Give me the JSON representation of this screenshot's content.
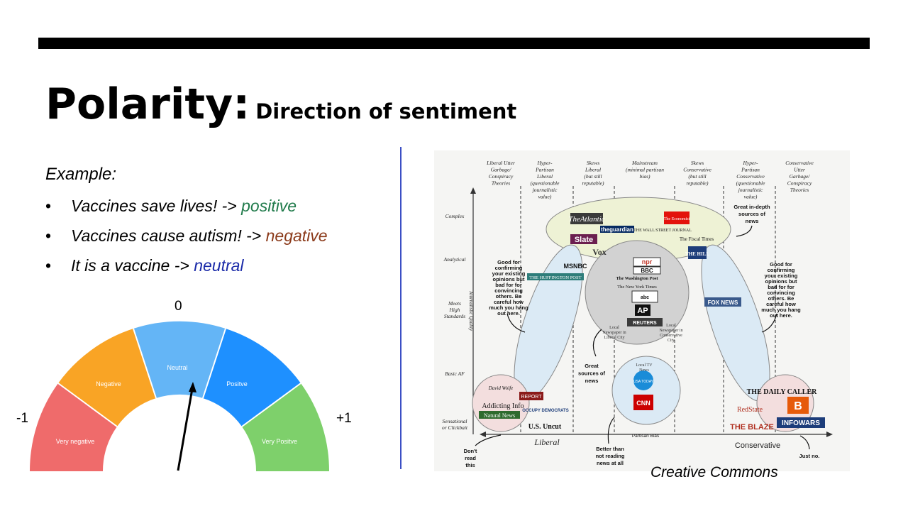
{
  "slide": {
    "title": "Polarity:",
    "subtitle": "Direction of sentiment"
  },
  "example": {
    "heading": "Example:",
    "bullet_glyph": "•",
    "items": [
      {
        "text": "Vaccines save lives! -> ",
        "label": "positive",
        "label_color": "#1f7a4a"
      },
      {
        "text": "Vaccines cause autism! -> ",
        "label": "negative",
        "label_color": "#8b3a1a"
      },
      {
        "text": "It is a vaccine -> ",
        "label": "neutral",
        "label_color": "#1a2aa8"
      }
    ]
  },
  "gauge": {
    "label_zero": "0",
    "label_min": "-1",
    "label_max": "+1",
    "segments": [
      {
        "label": "Very negative",
        "color": "#ef6b6b"
      },
      {
        "label": "Negative",
        "color": "#f9a425"
      },
      {
        "label": "Neutral",
        "color": "#64b5f6"
      },
      {
        "label": "Positve",
        "color": "#1e90ff"
      },
      {
        "label": "Very Positve",
        "color": "#7ed06b"
      }
    ]
  },
  "media_chart": {
    "columns": [
      [
        "Liberal Utter",
        "Garbage/",
        "Conspiracy",
        "Theories"
      ],
      [
        "Hyper-",
        "Partisan",
        "Liberal",
        "(questionable",
        "journalistic",
        "value)"
      ],
      [
        "Skews",
        "Liberal",
        "(but still",
        "reputable)"
      ],
      [
        "Mainstream",
        "(minimal partisan",
        "bias)"
      ],
      [
        "Skews",
        "Conservative",
        "(but still",
        "reputable)"
      ],
      [
        "Hyper-",
        "Partisan",
        "Conservative",
        "(questionable",
        "journalistic",
        "value)"
      ],
      [
        "Conservative",
        "Utter",
        "Garbage/",
        "Conspiracy",
        "Theories"
      ]
    ],
    "rows": [
      [
        "Complex"
      ],
      [
        "Analytical"
      ],
      [
        "Meets",
        "High",
        "Standards"
      ],
      [
        "Basic AF"
      ],
      [
        "Sensational",
        "or Clickbait"
      ]
    ],
    "y_axis_label": "Journalistic Quality",
    "x_axis_label": "Partisan Bias",
    "x_left": "Liberal",
    "x_right": "Conservative",
    "outlets": {
      "atlantic": "TheAtlantic",
      "guardian": "theguardian",
      "wsj": "THE WALL STREET JOURNAL",
      "economist": "The Economist",
      "slate": "Slate",
      "vox": "Vox",
      "fiscal_times": "The Fiscal Times",
      "the_hill": "THE HILL",
      "msnbc": "MSNBC",
      "huffpost": "THE HUFFINGTON POST",
      "npr": "npr",
      "bbc": "BBC",
      "wapo": "The Washington Post",
      "nyt": "The New York Times",
      "abc": "abc",
      "ap": "AP",
      "reuters": "REUTERS",
      "local_lib": [
        "Local",
        "Newspaper in",
        "Liberal City"
      ],
      "local_con": [
        "Local",
        "Newspaper in",
        "Conservative",
        "City"
      ],
      "fox": "FOX NEWS",
      "local_tv": [
        "Local TV",
        "News"
      ],
      "usa_today": "USA TODAY",
      "cnn": "CNN",
      "david_wolfe": "David Wolfe",
      "report": "REPORT",
      "addicting_info": "Addicting Info",
      "natural_news": "Natural News",
      "occupy": "OCCUPY DEMOCRATS",
      "us_uncut": "U.S. Uncut",
      "daily_caller": "THE DAILY CALLER",
      "breitbart": "B",
      "redstate": "RedState",
      "blaze": "THE BLAZE",
      "infowars": "INFOWARS"
    },
    "notes": {
      "good_left": [
        "Good for",
        "confirming",
        "your existing",
        "opinions but",
        "bad for for",
        "convincing",
        "others. Be",
        "careful how",
        "much you hang",
        "out here."
      ],
      "good_right": [
        "Good for",
        "confirming",
        "your existing",
        "opinions but",
        "bad for for",
        "convincing",
        "others. Be",
        "careful how",
        "much you hang",
        "out here."
      ],
      "great_top": [
        "Great in-depth",
        "sources of",
        "news"
      ],
      "great_mid": [
        "Great",
        "sources of",
        "news"
      ],
      "dont_read": [
        "Don't",
        "read",
        "this"
      ],
      "better_than": [
        "Better than",
        "not reading",
        "news at all"
      ],
      "just_no": [
        "Just no."
      ]
    }
  },
  "credit": "Creative Commons"
}
